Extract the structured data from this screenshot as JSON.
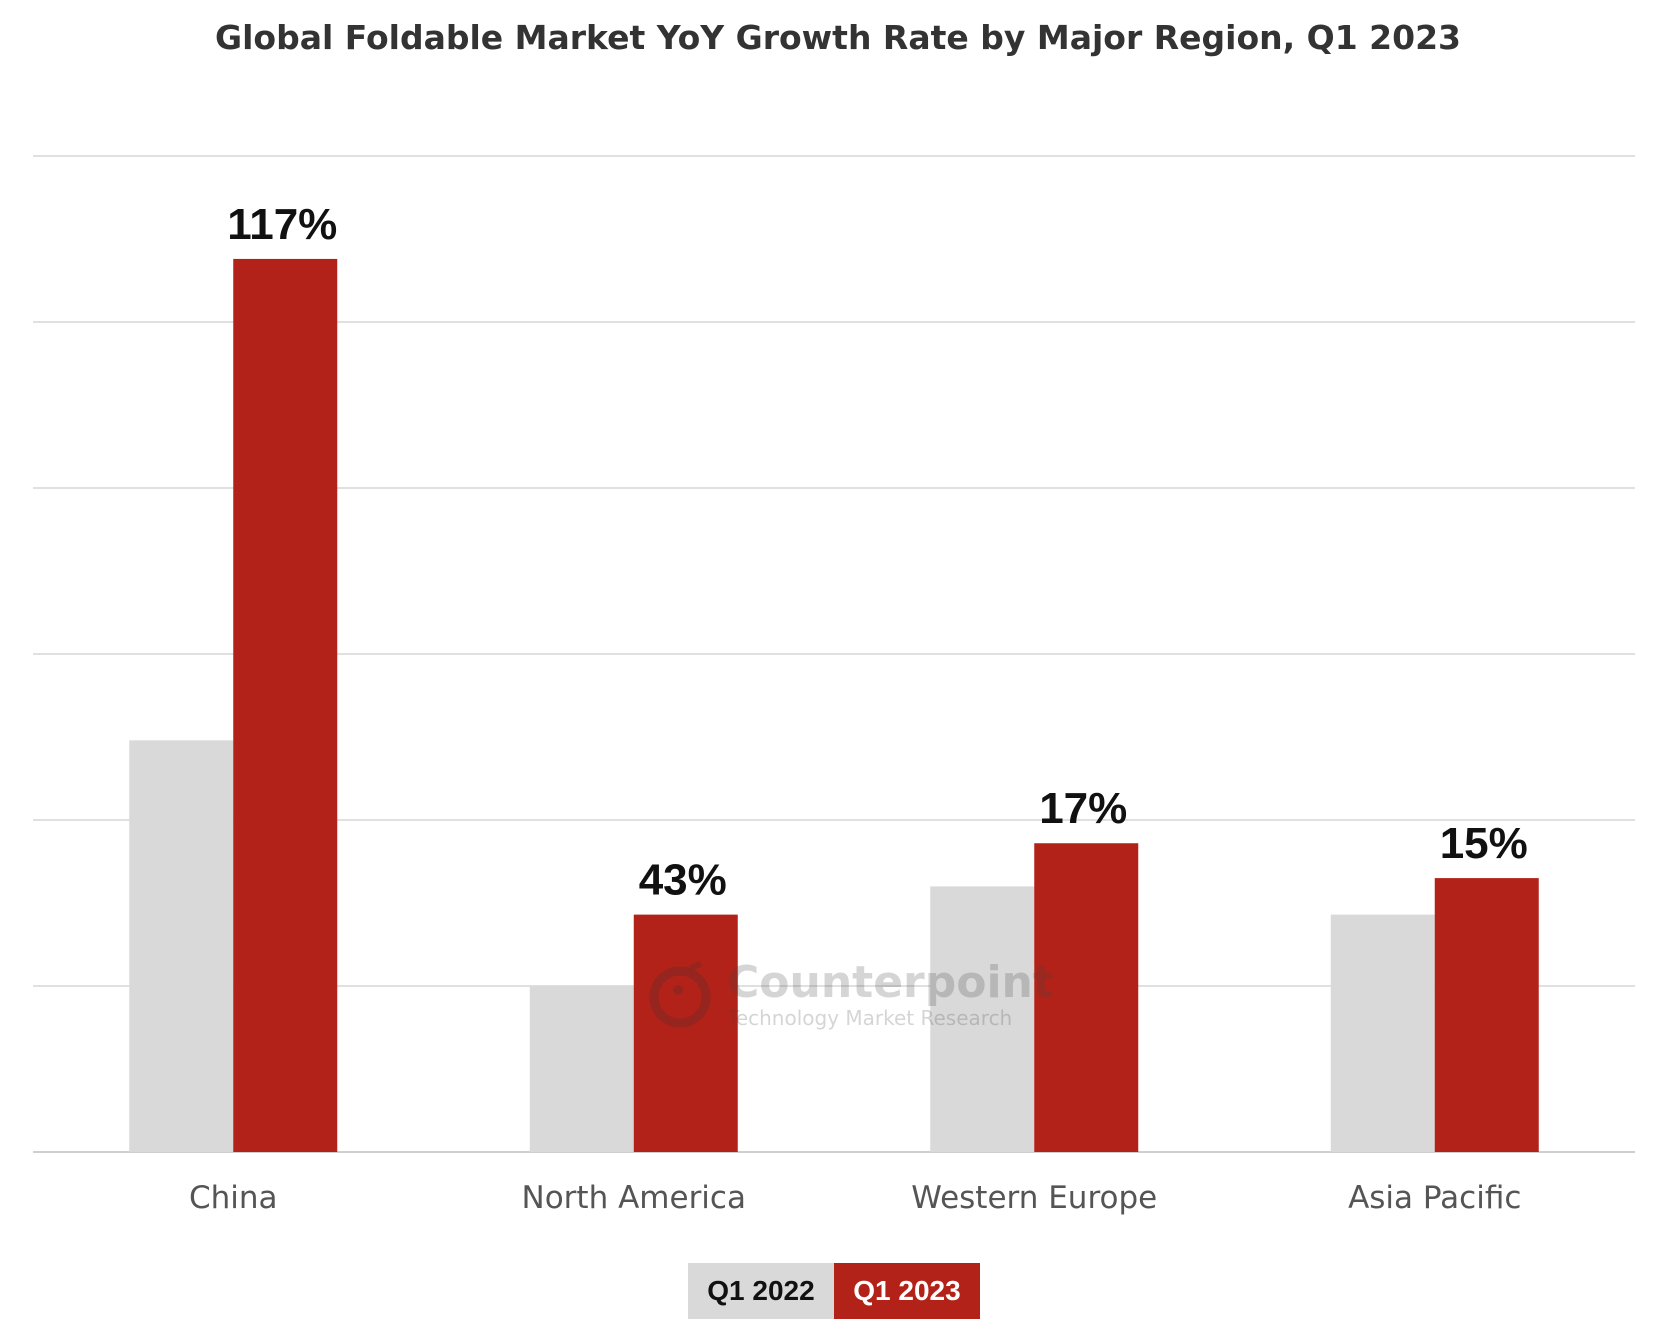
{
  "chart_data": {
    "type": "bar",
    "title": "Global Foldable Market YoY Growth Rate by Major Region, Q1 2023",
    "categories": [
      "China",
      "North America",
      "Western Europe",
      "Asia Pacific"
    ],
    "series": [
      {
        "name": "Q1 2022",
        "values": [
          2.48,
          1.0,
          1.6,
          1.43
        ],
        "color": "#d9d9d9"
      },
      {
        "name": "Q1 2023",
        "values": [
          5.38,
          1.43,
          1.86,
          1.65
        ],
        "color": "#b22218"
      }
    ],
    "data_labels": [
      "117%",
      "43%",
      "17%",
      "15%"
    ],
    "ylim": [
      0,
      6
    ],
    "grid": true,
    "legend_position": "bottom-center",
    "xlabel": "",
    "ylabel": ""
  },
  "legend": {
    "q1_2022": "Q1 2022",
    "q1_2023": "Q1 2023"
  },
  "watermark": {
    "brand": "Counterpoint",
    "tagline": "Technology Market Research"
  }
}
